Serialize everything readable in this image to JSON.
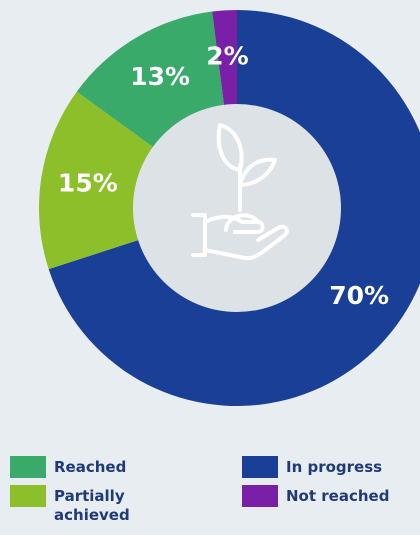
{
  "chart_data": {
    "type": "donut",
    "categories": [
      "In progress",
      "Partially achieved",
      "Reached",
      "Not reached"
    ],
    "values": [
      70,
      15,
      13,
      2
    ],
    "value_labels": [
      "70%",
      "15%",
      "13%",
      "2%"
    ],
    "colors": [
      "#1a3f96",
      "#8dbf2b",
      "#3aaa6b",
      "#7a1fa8"
    ]
  }
}
